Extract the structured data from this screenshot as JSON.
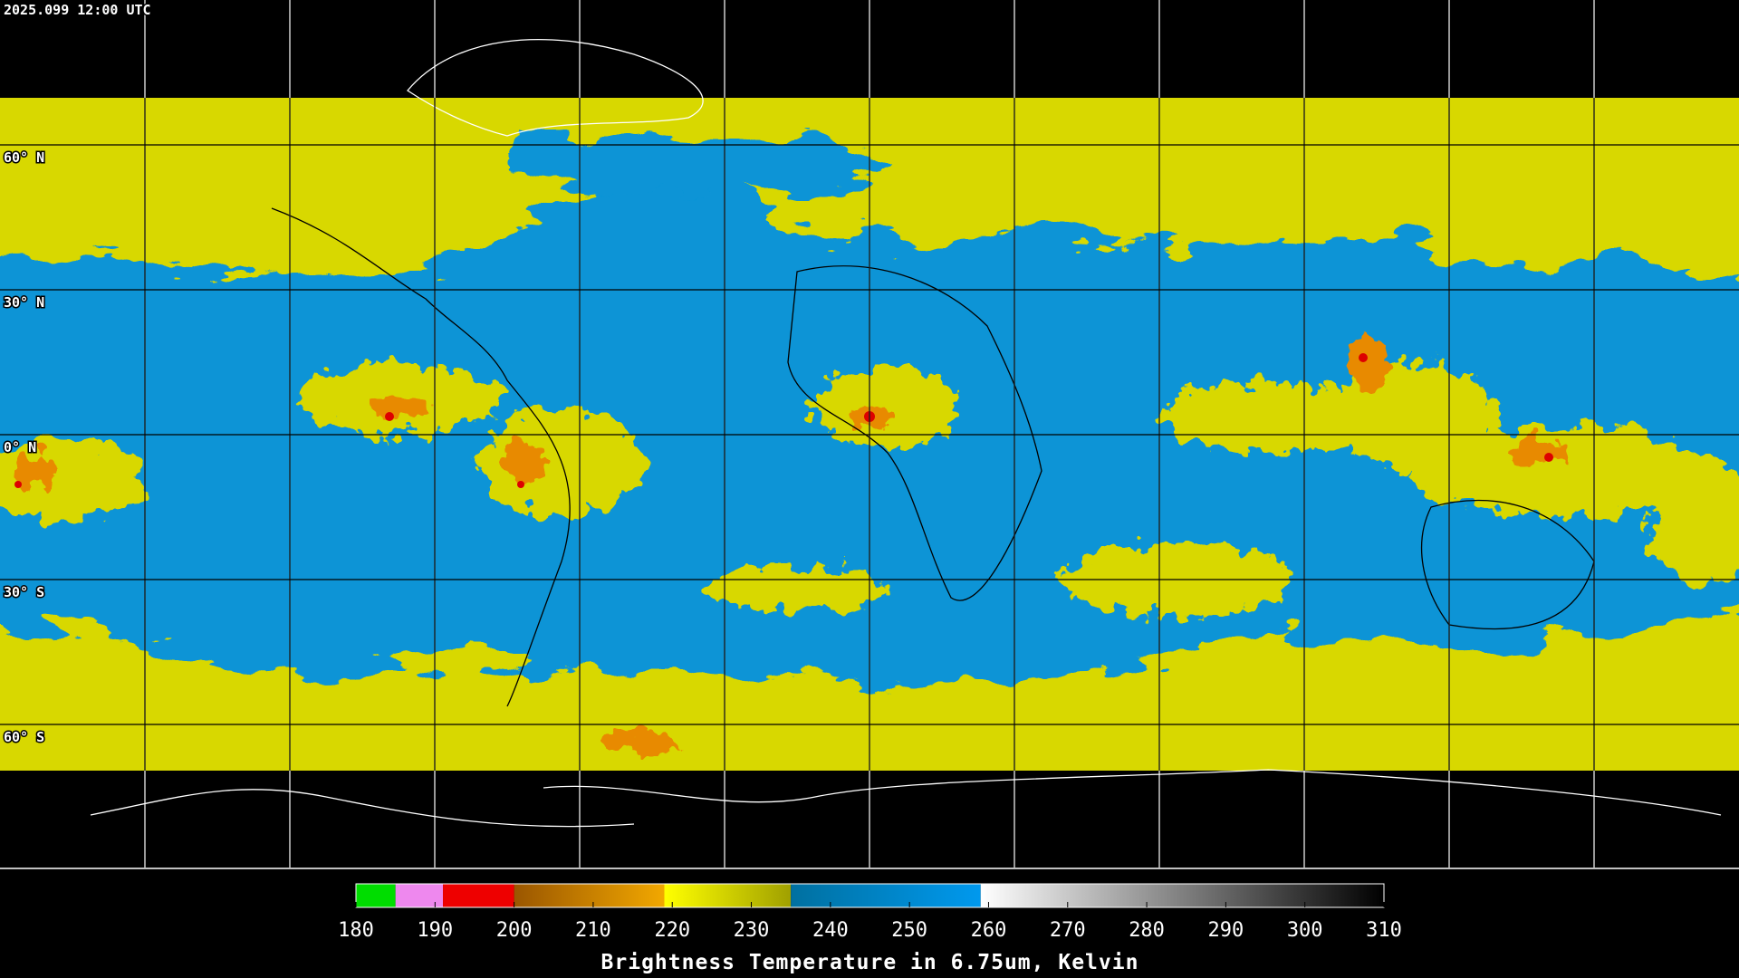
{
  "timestamp": "2025.099 12:00 UTC",
  "lat_labels": [
    "60° N",
    "30° N",
    "0° N",
    "30° S",
    "60° S"
  ],
  "colorbar": {
    "title": "Brightness Temperature in 6.75um, Kelvin",
    "lim": [
      180,
      310
    ],
    "ticks": [
      180,
      190,
      200,
      210,
      220,
      230,
      240,
      250,
      260,
      270,
      280,
      290,
      300,
      310
    ],
    "segments": [
      {
        "from": 180,
        "to": 185,
        "colors": [
          "#00dd00",
          "#00dd00"
        ]
      },
      {
        "from": 185,
        "to": 191,
        "colors": [
          "#ee88ee",
          "#ee88ee"
        ]
      },
      {
        "from": 191,
        "to": 200,
        "colors": [
          "#ee0000",
          "#ee0000"
        ]
      },
      {
        "from": 200,
        "to": 219,
        "colors": [
          "#9a5600",
          "#f2a800"
        ]
      },
      {
        "from": 219,
        "to": 235,
        "colors": [
          "#ffff00",
          "#a0a000"
        ]
      },
      {
        "from": 235,
        "to": 259,
        "colors": [
          "#0070a0",
          "#0099ee"
        ]
      },
      {
        "from": 259,
        "to": 310,
        "colors": [
          "#ffffff",
          "#000000"
        ]
      }
    ]
  }
}
